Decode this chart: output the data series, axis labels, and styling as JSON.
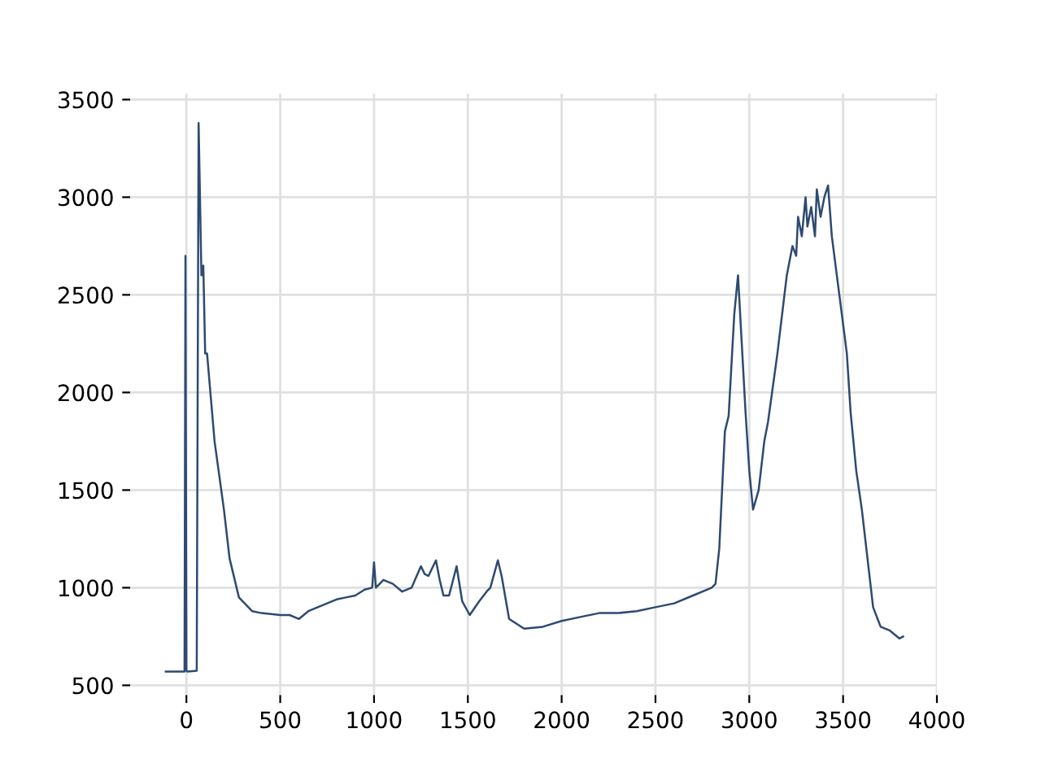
{
  "chart_data": {
    "type": "line",
    "xlim": [
      -300,
      4000
    ],
    "ylim": [
      450,
      3530
    ],
    "xticks": [
      0,
      500,
      1000,
      1500,
      2000,
      2500,
      3000,
      3500,
      4000
    ],
    "yticks": [
      500,
      1000,
      1500,
      2000,
      2500,
      3000,
      3500
    ],
    "grid": true,
    "series": [
      {
        "color": "#2e4a70",
        "x": [
          -110,
          -10,
          -5,
          0,
          5,
          55,
          65,
          80,
          90,
          100,
          110,
          150,
          200,
          230,
          280,
          350,
          400,
          500,
          550,
          600,
          650,
          700,
          750,
          800,
          850,
          900,
          950,
          990,
          1000,
          1010,
          1050,
          1100,
          1150,
          1200,
          1250,
          1270,
          1290,
          1330,
          1350,
          1370,
          1400,
          1440,
          1470,
          1510,
          1560,
          1600,
          1620,
          1660,
          1680,
          1720,
          1800,
          1900,
          2000,
          2100,
          2200,
          2300,
          2400,
          2500,
          2600,
          2700,
          2800,
          2820,
          2840,
          2870,
          2890,
          2920,
          2940,
          2960,
          2980,
          3000,
          3020,
          3050,
          3080,
          3100,
          3150,
          3200,
          3230,
          3250,
          3260,
          3280,
          3300,
          3310,
          3330,
          3350,
          3360,
          3380,
          3400,
          3420,
          3440,
          3480,
          3520,
          3540,
          3570,
          3600,
          3630,
          3660,
          3700,
          3750,
          3800,
          3820
        ],
        "values": [
          570,
          570,
          2700,
          575,
          570,
          575,
          3380,
          2600,
          2650,
          2200,
          2200,
          1750,
          1400,
          1150,
          950,
          880,
          870,
          860,
          860,
          840,
          880,
          900,
          920,
          940,
          950,
          960,
          990,
          1000,
          1130,
          1000,
          1040,
          1020,
          980,
          1000,
          1110,
          1070,
          1060,
          1140,
          1040,
          960,
          960,
          1110,
          930,
          860,
          930,
          980,
          1000,
          1140,
          1060,
          840,
          790,
          800,
          830,
          850,
          870,
          870,
          880,
          900,
          920,
          960,
          1000,
          1020,
          1200,
          1800,
          1880,
          2400,
          2600,
          2250,
          1900,
          1600,
          1400,
          1500,
          1750,
          1850,
          2200,
          2600,
          2750,
          2700,
          2900,
          2800,
          3000,
          2850,
          2950,
          2800,
          3040,
          2900,
          3000,
          3060,
          2800,
          2500,
          2200,
          1900,
          1600,
          1400,
          1150,
          900,
          800,
          780,
          740,
          750
        ]
      }
    ]
  }
}
